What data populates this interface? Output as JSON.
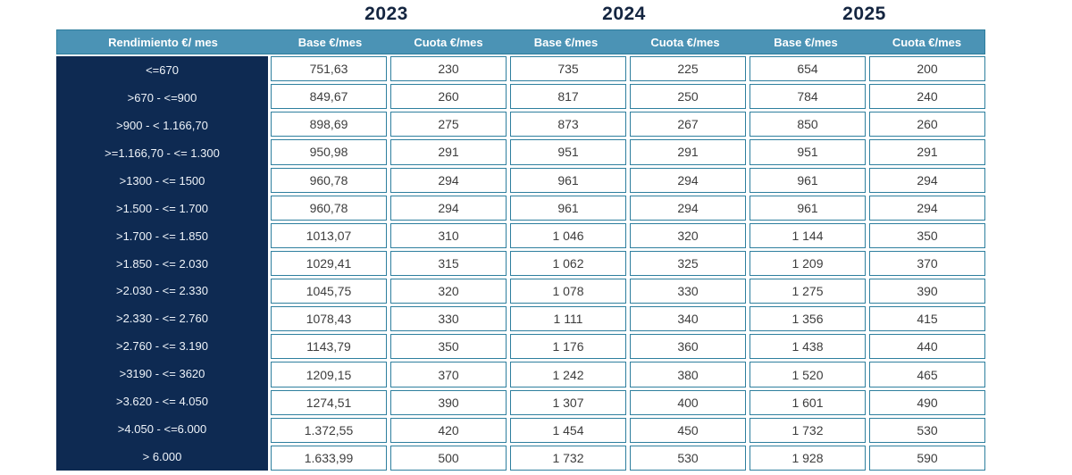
{
  "colors": {
    "header_bg": "#4b93b5",
    "first_col_bg": "#0e2a52",
    "cell_border": "#2e7f9e",
    "year_title": "#142540",
    "cell_text": "#3d3d3d",
    "header_text": "#ffffff",
    "first_col_text": "#eef3f9"
  },
  "chart_data": {
    "type": "table",
    "years": [
      "2023",
      "2024",
      "2025"
    ],
    "columns": [
      "Rendimiento  €/ mes",
      "Base €/mes",
      "Cuota €/mes",
      "Base €/mes",
      "Cuota €/mes",
      "Base €/mes",
      "Cuota €/mes"
    ],
    "rows": [
      [
        "<=670",
        "751,63",
        "230",
        "735",
        "225",
        "654",
        "200"
      ],
      [
        ">670 - <=900",
        "849,67",
        "260",
        "817",
        "250",
        "784",
        "240"
      ],
      [
        ">900 - < 1.166,70",
        "898,69",
        "275",
        "873",
        "267",
        "850",
        "260"
      ],
      [
        ">=1.166,70 - <= 1.300",
        "950,98",
        "291",
        "951",
        "291",
        "951",
        "291"
      ],
      [
        ">1300 - <= 1500",
        "960,78",
        "294",
        "961",
        "294",
        "961",
        "294"
      ],
      [
        ">1.500 - <= 1.700",
        "960,78",
        "294",
        "961",
        "294",
        "961",
        "294"
      ],
      [
        ">1.700 - <= 1.850",
        "1013,07",
        "310",
        "1 046",
        "320",
        "1 144",
        "350"
      ],
      [
        ">1.850 - <= 2.030",
        "1029,41",
        "315",
        "1 062",
        "325",
        "1 209",
        "370"
      ],
      [
        ">2.030 - <= 2.330",
        "1045,75",
        "320",
        "1 078",
        "330",
        "1 275",
        "390"
      ],
      [
        ">2.330 - <= 2.760",
        "1078,43",
        "330",
        "1 111",
        "340",
        "1 356",
        "415"
      ],
      [
        ">2.760 - <= 3.190",
        "1143,79",
        "350",
        "1 176",
        "360",
        "1 438",
        "440"
      ],
      [
        ">3190 - <= 3620",
        "1209,15",
        "370",
        "1 242",
        "380",
        "1 520",
        "465"
      ],
      [
        ">3.620 - <= 4.050",
        "1274,51",
        "390",
        "1 307",
        "400",
        "1 601",
        "490"
      ],
      [
        ">4.050 - <=6.000",
        "1.372,55",
        "420",
        "1 454",
        "450",
        "1 732",
        "530"
      ],
      [
        "> 6.000",
        "1.633,99",
        "500",
        "1 732",
        "530",
        "1 928",
        "590"
      ]
    ]
  }
}
